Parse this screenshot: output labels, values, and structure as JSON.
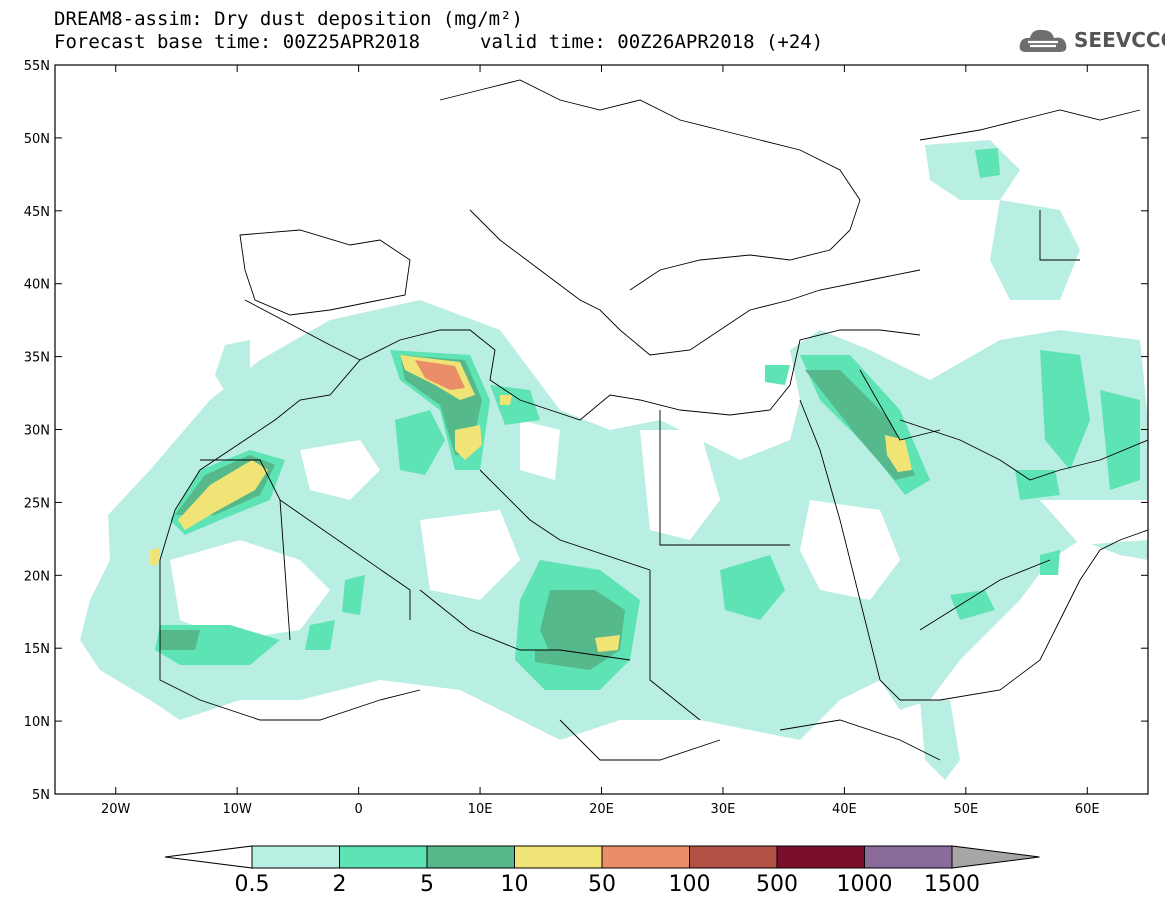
{
  "title": {
    "line1": "DREAM8-assim: Dry dust deposition (mg/m²)",
    "line2": "Forecast base time: 00Z25APR2018",
    "valid": "valid time: 00Z26APR2018 (+24)"
  },
  "logo": {
    "text": "SEEVCCC",
    "icon": "cloud-icon"
  },
  "map": {
    "lat_labels": [
      "55N",
      "50N",
      "45N",
      "40N",
      "35N",
      "30N",
      "25N",
      "20N",
      "15N",
      "10N",
      "5N"
    ],
    "lon_labels": [
      "20W",
      "10W",
      "0",
      "10E",
      "20E",
      "30E",
      "40E",
      "50E",
      "60E"
    ],
    "lat_range": [
      5,
      55
    ],
    "lon_range": [
      -25,
      65
    ]
  },
  "colorbar": {
    "labels": [
      "0.5",
      "2",
      "5",
      "10",
      "50",
      "100",
      "500",
      "1000",
      "1500"
    ],
    "colors": [
      "#b9eee2",
      "#5ee3b5",
      "#55b98b",
      "#f1e476",
      "#ea8e6a",
      "#b25143",
      "#7b0f2b",
      "#8b6a9c",
      "#a6a6a6"
    ],
    "underflow_color": "#ffffff"
  }
}
